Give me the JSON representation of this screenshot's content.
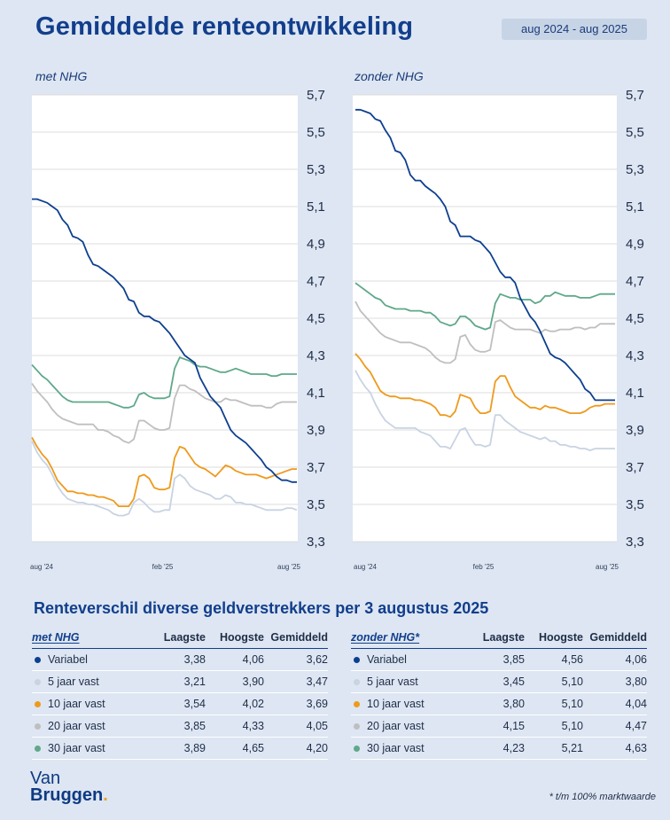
{
  "header": {
    "title": "Gemiddelde renteontwikkeling",
    "period": "aug 2024 - aug 2025"
  },
  "colors": {
    "variabel": "#0d3f8f",
    "5_jaar": "#c8d3e3",
    "10_jaar": "#ee9a1c",
    "20_jaar": "#bfbfbf",
    "30_jaar": "#5fa88a"
  },
  "chart_data": [
    {
      "type": "line",
      "title": "met NHG",
      "ylim": [
        3.3,
        5.7
      ],
      "yticks": [
        "5,7",
        "5,5",
        "5,3",
        "5,1",
        "4,9",
        "4,7",
        "4,5",
        "4,3",
        "4,1",
        "3,9",
        "3,7",
        "3,5",
        "3,3"
      ],
      "xticks": [
        "aug '24",
        "feb '25",
        "aug '25"
      ],
      "grid": true,
      "series": [
        {
          "name": "Variabel",
          "key": "variabel",
          "values": [
            5.14,
            5.14,
            5.13,
            5.12,
            5.1,
            5.08,
            5.03,
            5.0,
            4.94,
            4.93,
            4.91,
            4.84,
            4.79,
            4.78,
            4.76,
            4.74,
            4.72,
            4.69,
            4.66,
            4.6,
            4.59,
            4.53,
            4.51,
            4.51,
            4.49,
            4.48,
            4.45,
            4.42,
            4.38,
            4.34,
            4.3,
            4.28,
            4.26,
            4.18,
            4.13,
            4.08,
            4.05,
            4.02,
            3.96,
            3.9,
            3.87,
            3.85,
            3.83,
            3.8,
            3.77,
            3.74,
            3.7,
            3.68,
            3.65,
            3.63,
            3.63,
            3.62,
            3.62
          ]
        },
        {
          "name": "5 jaar vast",
          "key": "5_jaar",
          "values": [
            3.84,
            3.78,
            3.74,
            3.71,
            3.66,
            3.6,
            3.56,
            3.53,
            3.52,
            3.51,
            3.51,
            3.5,
            3.5,
            3.49,
            3.48,
            3.47,
            3.45,
            3.44,
            3.44,
            3.45,
            3.51,
            3.53,
            3.51,
            3.48,
            3.46,
            3.46,
            3.47,
            3.47,
            3.64,
            3.66,
            3.64,
            3.6,
            3.58,
            3.57,
            3.56,
            3.55,
            3.53,
            3.53,
            3.55,
            3.54,
            3.51,
            3.51,
            3.5,
            3.5,
            3.49,
            3.48,
            3.47,
            3.47,
            3.47,
            3.47,
            3.48,
            3.48,
            3.47
          ]
        },
        {
          "name": "10 jaar vast",
          "key": "10_jaar",
          "values": [
            3.86,
            3.81,
            3.77,
            3.74,
            3.69,
            3.63,
            3.6,
            3.57,
            3.57,
            3.56,
            3.56,
            3.55,
            3.55,
            3.54,
            3.54,
            3.53,
            3.52,
            3.49,
            3.49,
            3.49,
            3.53,
            3.65,
            3.66,
            3.64,
            3.59,
            3.58,
            3.58,
            3.59,
            3.75,
            3.81,
            3.8,
            3.76,
            3.72,
            3.7,
            3.69,
            3.67,
            3.65,
            3.68,
            3.71,
            3.7,
            3.68,
            3.67,
            3.66,
            3.66,
            3.66,
            3.65,
            3.64,
            3.65,
            3.66,
            3.67,
            3.68,
            3.69,
            3.69
          ]
        },
        {
          "name": "20 jaar vast",
          "key": "20_jaar",
          "values": [
            4.15,
            4.11,
            4.08,
            4.05,
            4.01,
            3.98,
            3.96,
            3.95,
            3.94,
            3.93,
            3.93,
            3.93,
            3.93,
            3.9,
            3.9,
            3.89,
            3.87,
            3.86,
            3.84,
            3.83,
            3.85,
            3.95,
            3.95,
            3.93,
            3.91,
            3.9,
            3.9,
            3.91,
            4.07,
            4.14,
            4.14,
            4.12,
            4.11,
            4.09,
            4.07,
            4.06,
            4.05,
            4.05,
            4.07,
            4.06,
            4.06,
            4.05,
            4.04,
            4.03,
            4.03,
            4.03,
            4.02,
            4.02,
            4.04,
            4.05,
            4.05,
            4.05,
            4.05
          ]
        },
        {
          "name": "30 jaar vast",
          "key": "30_jaar",
          "values": [
            4.25,
            4.22,
            4.19,
            4.17,
            4.14,
            4.11,
            4.08,
            4.06,
            4.05,
            4.05,
            4.05,
            4.05,
            4.05,
            4.05,
            4.05,
            4.05,
            4.04,
            4.03,
            4.02,
            4.02,
            4.03,
            4.09,
            4.1,
            4.08,
            4.07,
            4.07,
            4.07,
            4.08,
            4.23,
            4.29,
            4.28,
            4.27,
            4.25,
            4.24,
            4.24,
            4.23,
            4.22,
            4.21,
            4.21,
            4.22,
            4.23,
            4.22,
            4.21,
            4.2,
            4.2,
            4.2,
            4.2,
            4.19,
            4.19,
            4.2,
            4.2,
            4.2,
            4.2
          ]
        }
      ]
    },
    {
      "type": "line",
      "title": "zonder NHG",
      "ylim": [
        3.3,
        5.7
      ],
      "yticks": [
        "5,7",
        "5,5",
        "5,3",
        "5,1",
        "4,9",
        "4,7",
        "4,5",
        "4,3",
        "4,1",
        "3,9",
        "3,7",
        "3,5",
        "3,3"
      ],
      "xticks": [
        "aug '24",
        "feb '25",
        "aug '25"
      ],
      "grid": true,
      "series": [
        {
          "name": "Variabel",
          "key": "variabel",
          "values": [
            5.62,
            5.62,
            5.61,
            5.6,
            5.57,
            5.56,
            5.51,
            5.47,
            5.4,
            5.39,
            5.35,
            5.27,
            5.24,
            5.24,
            5.21,
            5.19,
            5.17,
            5.14,
            5.1,
            5.02,
            5.0,
            4.94,
            4.94,
            4.94,
            4.92,
            4.91,
            4.88,
            4.85,
            4.8,
            4.75,
            4.72,
            4.72,
            4.69,
            4.61,
            4.56,
            4.51,
            4.48,
            4.43,
            4.37,
            4.31,
            4.29,
            4.28,
            4.26,
            4.23,
            4.2,
            4.17,
            4.12,
            4.1,
            4.06,
            4.06,
            4.06,
            4.06,
            4.06
          ]
        },
        {
          "name": "5 jaar vast",
          "key": "5_jaar",
          "values": [
            4.22,
            4.17,
            4.13,
            4.1,
            4.04,
            3.99,
            3.95,
            3.93,
            3.91,
            3.91,
            3.91,
            3.91,
            3.91,
            3.89,
            3.88,
            3.87,
            3.84,
            3.81,
            3.81,
            3.8,
            3.85,
            3.9,
            3.91,
            3.86,
            3.82,
            3.82,
            3.81,
            3.82,
            3.98,
            3.98,
            3.95,
            3.93,
            3.91,
            3.89,
            3.88,
            3.87,
            3.86,
            3.85,
            3.86,
            3.84,
            3.84,
            3.82,
            3.82,
            3.81,
            3.81,
            3.8,
            3.8,
            3.79,
            3.8,
            3.8,
            3.8,
            3.8,
            3.8
          ]
        },
        {
          "name": "10 jaar vast",
          "key": "10_jaar",
          "values": [
            4.31,
            4.28,
            4.24,
            4.21,
            4.16,
            4.11,
            4.09,
            4.08,
            4.08,
            4.07,
            4.07,
            4.07,
            4.06,
            4.06,
            4.05,
            4.04,
            4.02,
            3.98,
            3.98,
            3.97,
            4.0,
            4.09,
            4.08,
            4.07,
            4.02,
            3.99,
            3.99,
            4.0,
            4.16,
            4.19,
            4.19,
            4.13,
            4.08,
            4.06,
            4.04,
            4.02,
            4.02,
            4.01,
            4.03,
            4.02,
            4.02,
            4.01,
            4.0,
            3.99,
            3.99,
            3.99,
            4.0,
            4.02,
            4.03,
            4.03,
            4.04,
            4.04,
            4.04
          ]
        },
        {
          "name": "20 jaar vast",
          "key": "20_jaar",
          "values": [
            4.59,
            4.54,
            4.51,
            4.48,
            4.45,
            4.42,
            4.4,
            4.39,
            4.38,
            4.37,
            4.37,
            4.37,
            4.36,
            4.35,
            4.34,
            4.32,
            4.29,
            4.27,
            4.26,
            4.26,
            4.28,
            4.4,
            4.41,
            4.36,
            4.33,
            4.32,
            4.32,
            4.33,
            4.48,
            4.49,
            4.47,
            4.45,
            4.44,
            4.44,
            4.44,
            4.44,
            4.43,
            4.42,
            4.44,
            4.43,
            4.43,
            4.44,
            4.44,
            4.44,
            4.45,
            4.45,
            4.44,
            4.45,
            4.45,
            4.47,
            4.47,
            4.47,
            4.47
          ]
        },
        {
          "name": "30 jaar vast",
          "key": "30_jaar",
          "values": [
            4.69,
            4.67,
            4.65,
            4.63,
            4.61,
            4.6,
            4.57,
            4.56,
            4.55,
            4.55,
            4.55,
            4.54,
            4.54,
            4.54,
            4.53,
            4.53,
            4.51,
            4.48,
            4.47,
            4.46,
            4.47,
            4.51,
            4.51,
            4.49,
            4.46,
            4.45,
            4.44,
            4.45,
            4.58,
            4.63,
            4.62,
            4.61,
            4.61,
            4.6,
            4.6,
            4.6,
            4.58,
            4.59,
            4.62,
            4.62,
            4.64,
            4.63,
            4.62,
            4.62,
            4.62,
            4.61,
            4.61,
            4.61,
            4.62,
            4.63,
            4.63,
            4.63,
            4.63
          ]
        }
      ]
    }
  ],
  "table_section": {
    "title": "Renteverschil diverse geldverstrekkers per 3 augustus 2025",
    "col_laagste": "Laagste",
    "col_hoogste": "Hoogste",
    "col_gemiddeld": "Gemiddeld",
    "met": {
      "heading": "met NHG",
      "rows": [
        {
          "label": "Variabel",
          "key": "variabel",
          "laagste": "3,38",
          "hoogste": "4,06",
          "gemiddeld": "3,62"
        },
        {
          "label": "5 jaar vast",
          "key": "5_jaar",
          "laagste": "3,21",
          "hoogste": "3,90",
          "gemiddeld": "3,47"
        },
        {
          "label": "10 jaar vast",
          "key": "10_jaar",
          "laagste": "3,54",
          "hoogste": "4,02",
          "gemiddeld": "3,69"
        },
        {
          "label": "20 jaar vast",
          "key": "20_jaar",
          "laagste": "3,85",
          "hoogste": "4,33",
          "gemiddeld": "4,05"
        },
        {
          "label": "30 jaar vast",
          "key": "30_jaar",
          "laagste": "3,89",
          "hoogste": "4,65",
          "gemiddeld": "4,20"
        }
      ]
    },
    "zonder": {
      "heading": "zonder NHG*",
      "rows": [
        {
          "label": "Variabel",
          "key": "variabel",
          "laagste": "3,85",
          "hoogste": "4,56",
          "gemiddeld": "4,06"
        },
        {
          "label": "5 jaar vast",
          "key": "5_jaar",
          "laagste": "3,45",
          "hoogste": "5,10",
          "gemiddeld": "3,80"
        },
        {
          "label": "10 jaar vast",
          "key": "10_jaar",
          "laagste": "3,80",
          "hoogste": "5,10",
          "gemiddeld": "4,04"
        },
        {
          "label": "20 jaar vast",
          "key": "20_jaar",
          "laagste": "4,15",
          "hoogste": "5,10",
          "gemiddeld": "4,47"
        },
        {
          "label": "30 jaar vast",
          "key": "30_jaar",
          "laagste": "4,23",
          "hoogste": "5,21",
          "gemiddeld": "4,63"
        }
      ]
    }
  },
  "footer": {
    "logo_line1": "Van",
    "logo_line2": "Bruggen",
    "logo_dot": ".",
    "footnote": "* t/m 100% marktwaarde"
  }
}
